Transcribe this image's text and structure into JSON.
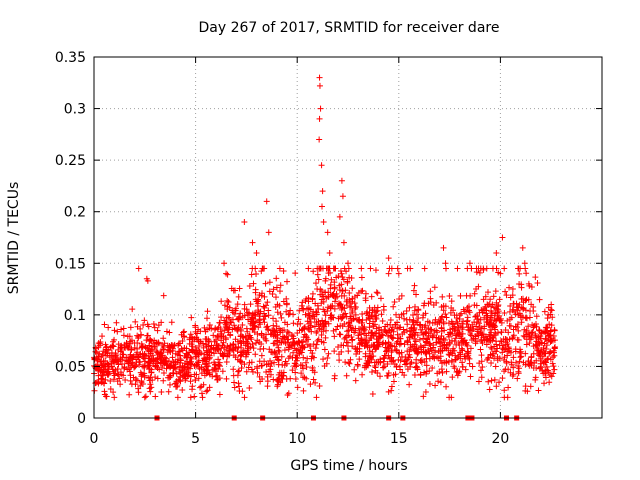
{
  "chart_data": {
    "type": "scatter",
    "title": "Day 267 of 2017, SRMTID for receiver dare",
    "xlabel": "GPS time / hours",
    "ylabel": "SRMTID / TECUs",
    "xlim": [
      0,
      25
    ],
    "ylim": [
      0,
      0.35
    ],
    "x_ticks": [
      0,
      5,
      10,
      15,
      20
    ],
    "x_tick_labels": [
      "0",
      "5",
      "10",
      "15",
      "20"
    ],
    "y_ticks": [
      0,
      0.05,
      0.1,
      0.15,
      0.2,
      0.25,
      0.3,
      0.35
    ],
    "y_tick_labels": [
      "0",
      "0.05",
      "0.1",
      "0.15",
      "0.2",
      "0.25",
      "0.3",
      "0.35"
    ],
    "grid": true,
    "marker": "plus",
    "series_color": "#ff0000",
    "density_profile": [
      {
        "x": 0.0,
        "base": 0.05,
        "spread": 0.012
      },
      {
        "x": 1.0,
        "base": 0.05,
        "spread": 0.013
      },
      {
        "x": 2.0,
        "base": 0.055,
        "spread": 0.015
      },
      {
        "x": 2.5,
        "base": 0.06,
        "spread": 0.02
      },
      {
        "x": 3.0,
        "base": 0.058,
        "spread": 0.014
      },
      {
        "x": 4.0,
        "base": 0.05,
        "spread": 0.013
      },
      {
        "x": 5.0,
        "base": 0.06,
        "spread": 0.016
      },
      {
        "x": 6.0,
        "base": 0.06,
        "spread": 0.016
      },
      {
        "x": 6.8,
        "base": 0.085,
        "spread": 0.025
      },
      {
        "x": 7.5,
        "base": 0.065,
        "spread": 0.018
      },
      {
        "x": 8.0,
        "base": 0.09,
        "spread": 0.03
      },
      {
        "x": 9.0,
        "base": 0.075,
        "spread": 0.022
      },
      {
        "x": 10.0,
        "base": 0.065,
        "spread": 0.018
      },
      {
        "x": 11.0,
        "base": 0.09,
        "spread": 0.03
      },
      {
        "x": 11.5,
        "base": 0.12,
        "spread": 0.03
      },
      {
        "x": 12.5,
        "base": 0.09,
        "spread": 0.025
      },
      {
        "x": 14.0,
        "base": 0.07,
        "spread": 0.02
      },
      {
        "x": 15.0,
        "base": 0.075,
        "spread": 0.02
      },
      {
        "x": 16.0,
        "base": 0.07,
        "spread": 0.02
      },
      {
        "x": 17.0,
        "base": 0.08,
        "spread": 0.022
      },
      {
        "x": 18.0,
        "base": 0.075,
        "spread": 0.022
      },
      {
        "x": 19.0,
        "base": 0.085,
        "spread": 0.025
      },
      {
        "x": 20.0,
        "base": 0.08,
        "spread": 0.025
      },
      {
        "x": 21.0,
        "base": 0.085,
        "spread": 0.025
      },
      {
        "x": 22.0,
        "base": 0.065,
        "spread": 0.018
      },
      {
        "x": 22.7,
        "base": 0.065,
        "spread": 0.018
      }
    ],
    "highlight_points": [
      {
        "x": 2.6,
        "y": 0.135
      },
      {
        "x": 2.65,
        "y": 0.133
      },
      {
        "x": 6.4,
        "y": 0.15
      },
      {
        "x": 6.5,
        "y": 0.14
      },
      {
        "x": 7.4,
        "y": 0.19
      },
      {
        "x": 7.8,
        "y": 0.17
      },
      {
        "x": 8.0,
        "y": 0.16
      },
      {
        "x": 8.5,
        "y": 0.21
      },
      {
        "x": 8.6,
        "y": 0.18
      },
      {
        "x": 11.1,
        "y": 0.33
      },
      {
        "x": 11.12,
        "y": 0.322
      },
      {
        "x": 11.15,
        "y": 0.3
      },
      {
        "x": 11.1,
        "y": 0.29
      },
      {
        "x": 11.08,
        "y": 0.27
      },
      {
        "x": 11.2,
        "y": 0.245
      },
      {
        "x": 11.25,
        "y": 0.22
      },
      {
        "x": 11.22,
        "y": 0.205
      },
      {
        "x": 11.3,
        "y": 0.19
      },
      {
        "x": 11.5,
        "y": 0.18
      },
      {
        "x": 11.6,
        "y": 0.16
      },
      {
        "x": 12.2,
        "y": 0.23
      },
      {
        "x": 12.25,
        "y": 0.215
      },
      {
        "x": 12.1,
        "y": 0.195
      },
      {
        "x": 12.3,
        "y": 0.17
      },
      {
        "x": 12.5,
        "y": 0.15
      },
      {
        "x": 14.5,
        "y": 0.155
      },
      {
        "x": 14.5,
        "y": 0.14
      },
      {
        "x": 15.0,
        "y": 0.14
      },
      {
        "x": 17.2,
        "y": 0.165
      },
      {
        "x": 17.3,
        "y": 0.15
      },
      {
        "x": 18.5,
        "y": 0.15
      },
      {
        "x": 19.8,
        "y": 0.16
      },
      {
        "x": 20.0,
        "y": 0.14
      },
      {
        "x": 20.1,
        "y": 0.175
      },
      {
        "x": 21.1,
        "y": 0.165
      },
      {
        "x": 21.2,
        "y": 0.15
      },
      {
        "x": 21.4,
        "y": 0.13
      },
      {
        "x": 22.5,
        "y": 0.11
      }
    ],
    "zero_markers_x": [
      3.1,
      6.9,
      8.3,
      10.8,
      12.3,
      14.5,
      15.2,
      18.4,
      18.6,
      20.3,
      20.8
    ]
  }
}
